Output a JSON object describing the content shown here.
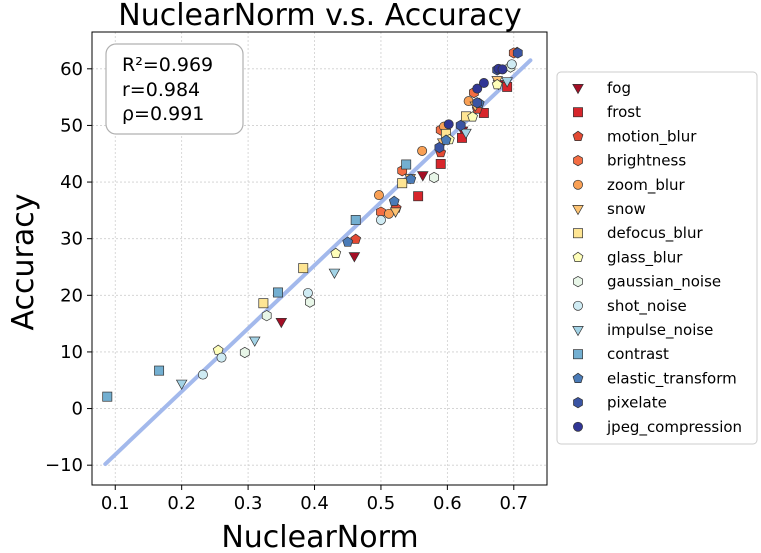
{
  "chart_data": {
    "type": "scatter",
    "title": "NuclearNorm  v.s.  Accuracy",
    "xlabel": "NuclearNorm",
    "ylabel": "Accuracy",
    "xlim": [
      0.065,
      0.75
    ],
    "ylim": [
      -13.5,
      66.5
    ],
    "xticks": [
      "0.1",
      "0.2",
      "0.3",
      "0.4",
      "0.5",
      "0.6",
      "0.7"
    ],
    "yticks": [
      "−10",
      "0",
      "10",
      "20",
      "30",
      "40",
      "50",
      "60"
    ],
    "grid": true,
    "legend_position": "right-outside",
    "stats": [
      "R²=0.969",
      "r=0.984",
      "ρ=0.991"
    ],
    "fit_line": {
      "color": "#a3b9ec",
      "x": [
        0.085,
        0.725
      ],
      "y": [
        -9.8,
        61.5
      ]
    },
    "series": [
      {
        "name": "fog",
        "marker": "triangle-down",
        "color": "#a50f26",
        "points": [
          [
            0.35,
            15.3
          ],
          [
            0.46,
            26.9
          ],
          [
            0.563,
            41.2
          ],
          [
            0.623,
            49.1
          ],
          [
            0.677,
            57.3
          ]
        ]
      },
      {
        "name": "frost",
        "marker": "square",
        "color": "#d7252b",
        "points": [
          [
            0.556,
            37.5
          ],
          [
            0.59,
            43.2
          ],
          [
            0.622,
            47.8
          ],
          [
            0.655,
            52.2
          ],
          [
            0.69,
            56.8
          ]
        ]
      },
      {
        "name": "motion_blur",
        "marker": "pentagon",
        "color": "#e34933",
        "points": [
          [
            0.462,
            29.9
          ],
          [
            0.523,
            35.4
          ],
          [
            0.59,
            45.2
          ],
          [
            0.645,
            52.9
          ],
          [
            0.705,
            62.9
          ]
        ]
      },
      {
        "name": "brightness",
        "marker": "hexagon",
        "color": "#f46d43",
        "points": [
          [
            0.5,
            34.7
          ],
          [
            0.532,
            42.0
          ],
          [
            0.59,
            49.2
          ],
          [
            0.64,
            55.8
          ],
          [
            0.7,
            62.8
          ]
        ]
      },
      {
        "name": "zoom_blur",
        "marker": "circle",
        "color": "#f9a055",
        "points": [
          [
            0.497,
            37.7
          ],
          [
            0.512,
            34.4
          ],
          [
            0.562,
            45.5
          ],
          [
            0.595,
            49.8
          ],
          [
            0.632,
            54.3
          ]
        ]
      },
      {
        "name": "snow",
        "marker": "triangle-down",
        "color": "#fdc474",
        "points": [
          [
            0.522,
            34.8
          ],
          [
            0.544,
            40.7
          ],
          [
            0.593,
            47.0
          ],
          [
            0.642,
            53.5
          ],
          [
            0.675,
            58.0
          ]
        ]
      },
      {
        "name": "defocus_blur",
        "marker": "square",
        "color": "#fee593",
        "points": [
          [
            0.323,
            18.6
          ],
          [
            0.383,
            24.8
          ],
          [
            0.532,
            39.8
          ],
          [
            0.598,
            48.5
          ],
          [
            0.628,
            51.6
          ]
        ]
      },
      {
        "name": "glass_blur",
        "marker": "pentagon",
        "color": "#fefeb9",
        "points": [
          [
            0.255,
            10.3
          ],
          [
            0.432,
            27.4
          ],
          [
            0.603,
            47.5
          ],
          [
            0.638,
            51.5
          ],
          [
            0.675,
            57.2
          ]
        ]
      },
      {
        "name": "gaussian_noise",
        "marker": "hexagon",
        "color": "#e8f6e8",
        "points": [
          [
            0.295,
            9.9
          ],
          [
            0.328,
            16.4
          ],
          [
            0.393,
            18.8
          ],
          [
            0.58,
            40.8
          ],
          [
            0.695,
            60.3
          ]
        ]
      },
      {
        "name": "shot_noise",
        "marker": "circle",
        "color": "#cfebf3",
        "points": [
          [
            0.232,
            6.0
          ],
          [
            0.26,
            9.0
          ],
          [
            0.39,
            20.4
          ],
          [
            0.5,
            33.3
          ],
          [
            0.697,
            60.8
          ]
        ]
      },
      {
        "name": "impulse_noise",
        "marker": "triangle-down",
        "color": "#a3d3e6",
        "points": [
          [
            0.2,
            4.4
          ],
          [
            0.31,
            12.0
          ],
          [
            0.43,
            24.0
          ],
          [
            0.628,
            48.7
          ],
          [
            0.69,
            57.8
          ]
        ]
      },
      {
        "name": "contrast",
        "marker": "square",
        "color": "#73afd1",
        "points": [
          [
            0.088,
            2.1
          ],
          [
            0.166,
            6.7
          ],
          [
            0.345,
            20.5
          ],
          [
            0.462,
            33.3
          ],
          [
            0.538,
            43.1
          ]
        ]
      },
      {
        "name": "elastic_transform",
        "marker": "pentagon",
        "color": "#4a7bb7",
        "points": [
          [
            0.45,
            29.4
          ],
          [
            0.52,
            36.6
          ],
          [
            0.545,
            40.5
          ],
          [
            0.598,
            47.4
          ],
          [
            0.648,
            53.9
          ]
        ]
      },
      {
        "name": "pixelate",
        "marker": "hexagon",
        "color": "#3a54a3",
        "points": [
          [
            0.588,
            46.1
          ],
          [
            0.62,
            50.0
          ],
          [
            0.645,
            54.0
          ],
          [
            0.675,
            59.8
          ],
          [
            0.706,
            62.8
          ]
        ]
      },
      {
        "name": "jpeg_compression",
        "marker": "circle",
        "color": "#313695",
        "points": [
          [
            0.602,
            50.2
          ],
          [
            0.645,
            56.5
          ],
          [
            0.655,
            57.5
          ],
          [
            0.677,
            60.0
          ],
          [
            0.683,
            59.9
          ]
        ]
      }
    ]
  }
}
